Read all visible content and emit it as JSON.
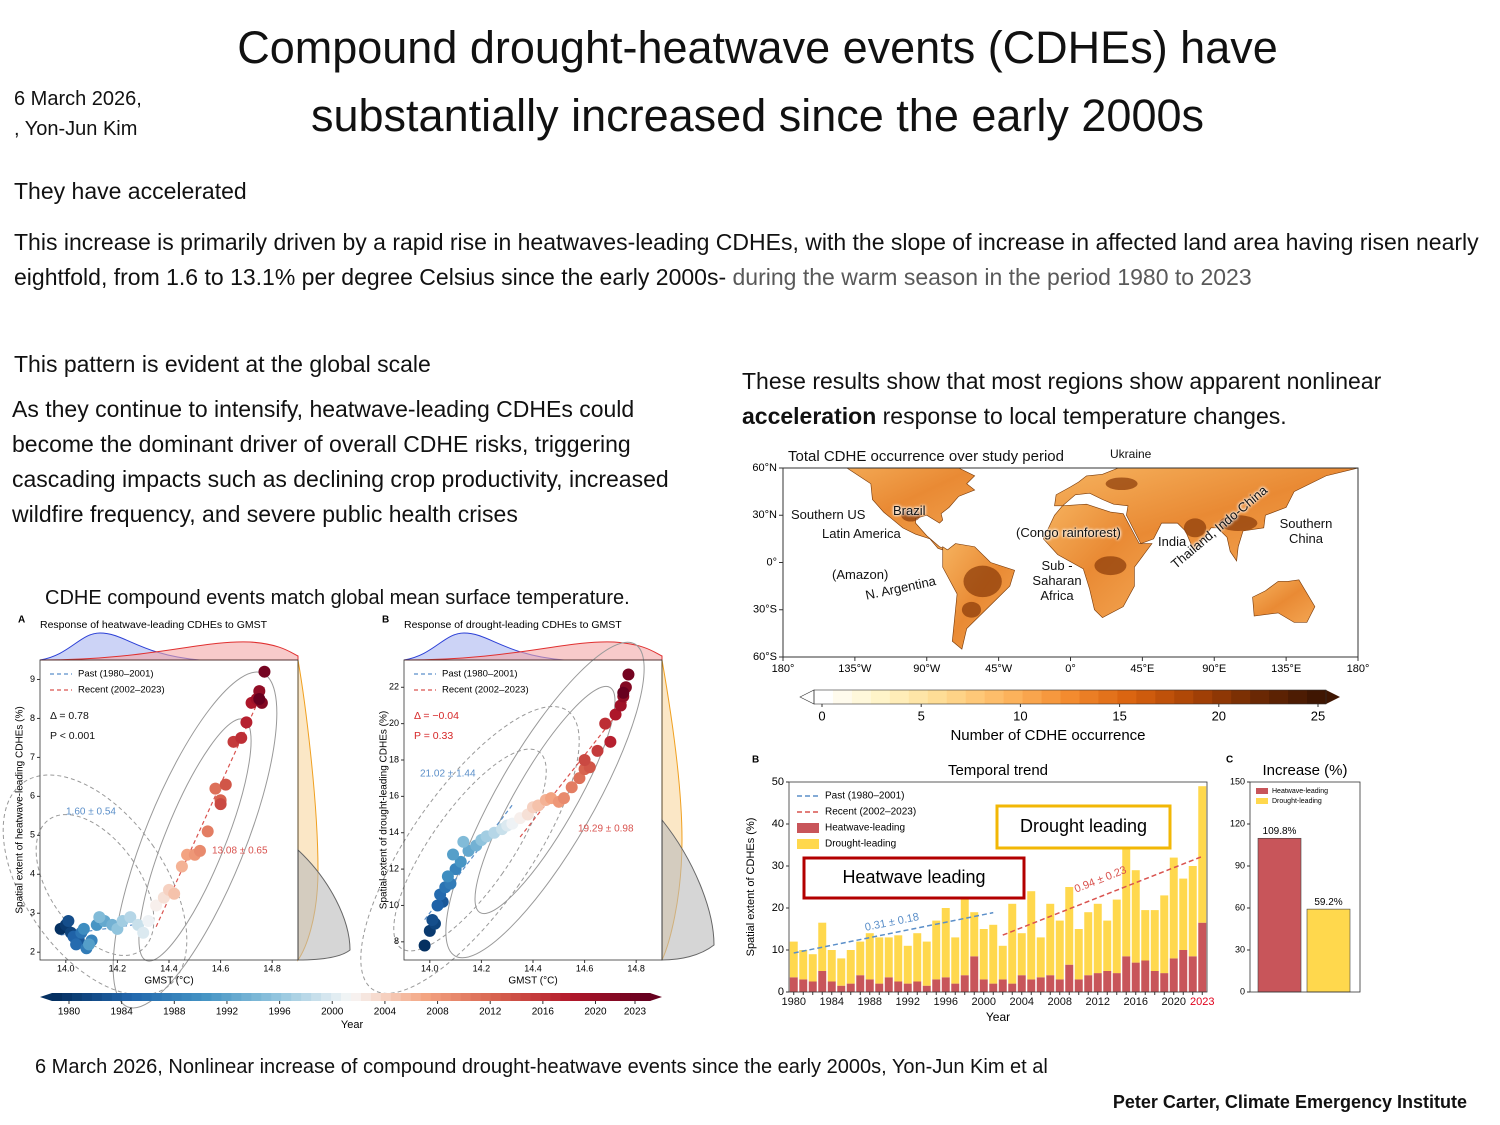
{
  "header": {
    "date": "6 March 2026,",
    "author": ", Yon-Jun Kim",
    "title": [
      "Compound drought-heatwave events (CDHEs) have",
      "substantially increased since the early 2000s"
    ]
  },
  "paragraphs": {
    "accelerated": "They have accelerated",
    "increase": "This increase is primarily driven by a rapid rise in heatwaves-leading CDHEs, with the slope of increase in affected land area having risen nearly eightfold, from 1.6 to 13.1% per degree Celsius since the early 2000s-",
    "increase_context": " during the warm season in the period 1980 to 2023",
    "global": "This pattern is evident at the global scale",
    "intensify": "As they continue to intensify, heatwave-leading CDHEs could become the dominant driver of overall CDHE risks, triggering cascading impacts such as declining crop productivity, increased wildfire frequency, and severe public health crises",
    "regions": [
      "These results show that most regions show apparent nonlinear ",
      "acceleration",
      " response to local temperature changes."
    ],
    "scatter_caption": "CDHE compound events match global mean surface temperature."
  },
  "map": {
    "title": "Total CDHE occurrence over study period",
    "extra_label": "Ukraine",
    "region_labels": [
      "Southern US",
      "Brazil",
      "Latin America",
      "(Congo rainforest)",
      "India",
      "Southern China",
      "(Amazon)",
      "N. Argentina",
      "Sub -Saharan Africa",
      "Thailand, Indo-China"
    ],
    "lat_lim": [
      -60,
      60
    ],
    "lon_lim": [
      -180,
      180
    ],
    "lat_ticks": [
      {
        "value": 60,
        "label": "60°N"
      },
      {
        "value": 30,
        "label": "30°N"
      },
      {
        "value": 0,
        "label": "0°"
      },
      {
        "value": -30,
        "label": "30°S"
      },
      {
        "value": -60,
        "label": "60°S"
      }
    ],
    "lon_ticks": [
      {
        "value": -180,
        "label": "180°"
      },
      {
        "value": -135,
        "label": "135°W"
      },
      {
        "value": -90,
        "label": "90°W"
      },
      {
        "value": -45,
        "label": "45°W"
      },
      {
        "value": 0,
        "label": "0°"
      },
      {
        "value": 45,
        "label": "45°E"
      },
      {
        "value": 90,
        "label": "90°E"
      },
      {
        "value": 135,
        "label": "135°E"
      },
      {
        "value": 180,
        "label": "180°"
      }
    ],
    "colorbar": {
      "ticks": [
        0,
        5,
        10,
        15,
        20,
        25
      ],
      "label": "Number of CDHE occurrence",
      "colors": [
        "#ffffff",
        "#fff3c4",
        "#fed98e",
        "#fdb55f",
        "#f38b2f",
        "#d9620f",
        "#a94306",
        "#6e2a04",
        "#3f1602"
      ]
    }
  },
  "year_colorbar": {
    "ticks": [
      1980,
      1984,
      1988,
      1992,
      1996,
      2000,
      2004,
      2008,
      2012,
      2016,
      2020,
      2023
    ],
    "label": "Year",
    "colors": [
      "#053061",
      "#2166ac",
      "#4393c3",
      "#92c5de",
      "#f7f7f7",
      "#f4a582",
      "#d6604d",
      "#b2182b",
      "#67001f"
    ]
  },
  "chart_data": [
    {
      "type": "scatter",
      "panel": "A",
      "title": "Response of heatwave-leading CDHEs to GMST",
      "xlabel": "GMST (°C)",
      "ylabel": "Spatial extent of heatwave-leading CDHEs (%)",
      "xlim": [
        13.9,
        14.9
      ],
      "ylim": [
        1.8,
        9.5
      ],
      "xticks": [
        {
          "value": 14,
          "label": "14.0"
        },
        {
          "value": 14.2,
          "label": "14.2"
        },
        {
          "value": 14.4,
          "label": "14.4"
        },
        {
          "value": 14.6,
          "label": "14.6"
        },
        {
          "value": 14.8,
          "label": "14.8"
        }
      ],
      "yticks": [
        2,
        3,
        4,
        5,
        6,
        7,
        8,
        9
      ],
      "stats": [
        "Δ = 0.78",
        "P < 0.001"
      ],
      "stats_color": "#111111",
      "series": [
        {
          "name": "Past (1980–2001)",
          "color": "#5b8fc9",
          "fit_label": "1.60 ± 0.54",
          "x": [
            13.98,
            14.0,
            14.02,
            14.01,
            14.05,
            14.03,
            14.04,
            14.06,
            14.08,
            14.1,
            14.07,
            14.12,
            14.09,
            14.15,
            14.18,
            14.13,
            14.2,
            14.22,
            14.25,
            14.28,
            14.3,
            14.32
          ],
          "values": [
            2.6,
            2.7,
            2.5,
            2.8,
            2.3,
            2.4,
            2.2,
            2.5,
            2.1,
            2.3,
            2.6,
            2.7,
            2.2,
            2.8,
            2.7,
            2.9,
            2.6,
            2.8,
            2.9,
            2.7,
            2.5,
            2.8
          ]
        },
        {
          "name": "Recent (2002–2023)",
          "color": "#d9534f",
          "fit_label": "13.08 ± 0.65",
          "x": [
            14.35,
            14.38,
            14.4,
            14.42,
            14.45,
            14.47,
            14.5,
            14.52,
            14.55,
            14.58,
            14.6,
            14.62,
            14.6,
            14.65,
            14.68,
            14.7,
            14.72,
            14.74,
            14.75,
            14.76,
            14.77,
            14.75
          ],
          "values": [
            3.2,
            3.4,
            3.6,
            3.5,
            4.2,
            4.5,
            4.5,
            4.6,
            5.1,
            6.2,
            5.9,
            6.3,
            5.8,
            7.4,
            7.5,
            7.9,
            8.4,
            8.5,
            8.7,
            8.4,
            9.2,
            8.5
          ]
        }
      ]
    },
    {
      "type": "scatter",
      "panel": "B",
      "title": "Response of drought-leading CDHEs to GMST",
      "xlabel": "GMST (°C)",
      "ylabel": "Spatial extent of drought-leading CDHEs (%)",
      "xlim": [
        13.9,
        14.9
      ],
      "ylim": [
        7,
        23.5
      ],
      "xticks": [
        {
          "value": 14,
          "label": "14.0"
        },
        {
          "value": 14.2,
          "label": "14.2"
        },
        {
          "value": 14.4,
          "label": "14.4"
        },
        {
          "value": 14.6,
          "label": "14.6"
        },
        {
          "value": 14.8,
          "label": "14.8"
        }
      ],
      "yticks": [
        8,
        10,
        12,
        14,
        16,
        18,
        20,
        22
      ],
      "stats": [
        "Δ = −0.04",
        "P = 0.33"
      ],
      "stats_color": "#d62728",
      "series": [
        {
          "name": "Past (1980–2001)",
          "color": "#5b8fc9",
          "fit_label": "21.02 ± 1.44",
          "x": [
            13.98,
            14.0,
            14.02,
            14.01,
            14.05,
            14.03,
            14.04,
            14.06,
            14.08,
            14.1,
            14.07,
            14.12,
            14.09,
            14.15,
            14.18,
            14.13,
            14.2,
            14.22,
            14.25,
            14.28,
            14.3,
            14.32
          ],
          "values": [
            7.8,
            8.6,
            9.0,
            9.2,
            10.2,
            10.0,
            10.6,
            11.0,
            11.2,
            12.0,
            11.6,
            12.4,
            12.8,
            13.0,
            13.3,
            13.5,
            13.6,
            13.8,
            14.0,
            14.2,
            14.4,
            14.5
          ]
        },
        {
          "name": "Recent (2002–2023)",
          "color": "#d9534f",
          "fit_label": "19.29 ± 0.98",
          "x": [
            14.35,
            14.38,
            14.4,
            14.42,
            14.45,
            14.47,
            14.5,
            14.52,
            14.55,
            14.58,
            14.6,
            14.62,
            14.6,
            14.65,
            14.68,
            14.7,
            14.72,
            14.74,
            14.75,
            14.76,
            14.77,
            14.75
          ],
          "values": [
            14.8,
            15.0,
            15.4,
            15.5,
            15.8,
            15.9,
            15.7,
            15.9,
            16.5,
            17.0,
            17.5,
            17.6,
            18.0,
            18.5,
            20.0,
            19.0,
            20.5,
            21.0,
            21.5,
            22.0,
            22.7,
            21.7
          ]
        }
      ]
    },
    {
      "type": "bar",
      "stacked": true,
      "panel": "B",
      "title": "Temporal trend",
      "xlabel": "Year",
      "ylabel": "Spatial extent of CDHEs (%)",
      "categories": [
        "1980",
        null,
        null,
        null,
        "1984",
        null,
        null,
        null,
        "1988",
        null,
        null,
        null,
        "1992",
        null,
        null,
        null,
        "1996",
        null,
        null,
        null,
        "2000",
        null,
        null,
        null,
        "2004",
        null,
        null,
        null,
        "2008",
        null,
        null,
        null,
        "2012",
        null,
        null,
        null,
        "2016",
        null,
        null,
        null,
        "2020",
        null,
        null,
        "2023"
      ],
      "last_label_color": "#e0001b",
      "ylim": [
        0,
        50
      ],
      "yticks": [
        0,
        10,
        20,
        30,
        40,
        50
      ],
      "fits": [
        {
          "name": "Past (1980–2001)",
          "color": "#5b8fc9",
          "label": "0.31 ± 0.18"
        },
        {
          "name": "Recent (2002–2023)",
          "color": "#d9534f",
          "label": "0.94 ± 0.23"
        }
      ],
      "series": [
        {
          "name": "Heatwave-leading",
          "color": "#c8555a",
          "values": [
            3.5,
            3,
            2.5,
            5,
            2.5,
            1.5,
            2,
            4,
            3,
            2,
            3.5,
            2.5,
            2,
            2.5,
            1.5,
            3,
            3.5,
            2,
            4,
            8.5,
            3,
            2,
            3,
            2,
            4,
            3,
            3.5,
            4,
            3,
            6.5,
            3,
            4,
            4.5,
            5,
            4.5,
            8.5,
            7,
            7.5,
            5,
            4.5,
            8,
            10,
            8.5,
            16.5
          ]
        },
        {
          "name": "Drought-leading",
          "color": "#ffd84d",
          "values": [
            8.5,
            7,
            6.5,
            11.5,
            7.5,
            6.5,
            8,
            8,
            11,
            11,
            9.5,
            11,
            9,
            11.5,
            10.5,
            14,
            16.5,
            11,
            28,
            10.5,
            12,
            14,
            8,
            19,
            10,
            21,
            9.5,
            17,
            14,
            18.5,
            12,
            15,
            16.5,
            12,
            17.5,
            26.5,
            22,
            12,
            14.5,
            18.5,
            24,
            17,
            21.5,
            32.5
          ]
        }
      ],
      "callouts": [
        {
          "text": "Heatwave leading",
          "color": "#b30000"
        },
        {
          "text": "Drought leading",
          "color": "#f2b705"
        }
      ]
    },
    {
      "type": "bar",
      "panel": "C",
      "title": "Increase (%)",
      "categories": [
        null
      ],
      "ylim": [
        0,
        150
      ],
      "yticks": [
        0,
        30,
        60,
        90,
        120,
        150
      ],
      "series": [
        {
          "name": "Heatwave-leading",
          "color": "#c8555a",
          "values": [
            109.8
          ],
          "value_labels": [
            "109.8%"
          ]
        },
        {
          "name": "Drought-leading",
          "color": "#ffd84d",
          "values": [
            59.2
          ],
          "value_labels": [
            "59.2%"
          ]
        }
      ]
    }
  ],
  "footer": {
    "citation": "6 March 2026, Nonlinear increase of compound drought-heatwave events since the early 2000s, Yon-Jun Kim et al",
    "credit": "Peter Carter, Climate Emergency Institute"
  }
}
